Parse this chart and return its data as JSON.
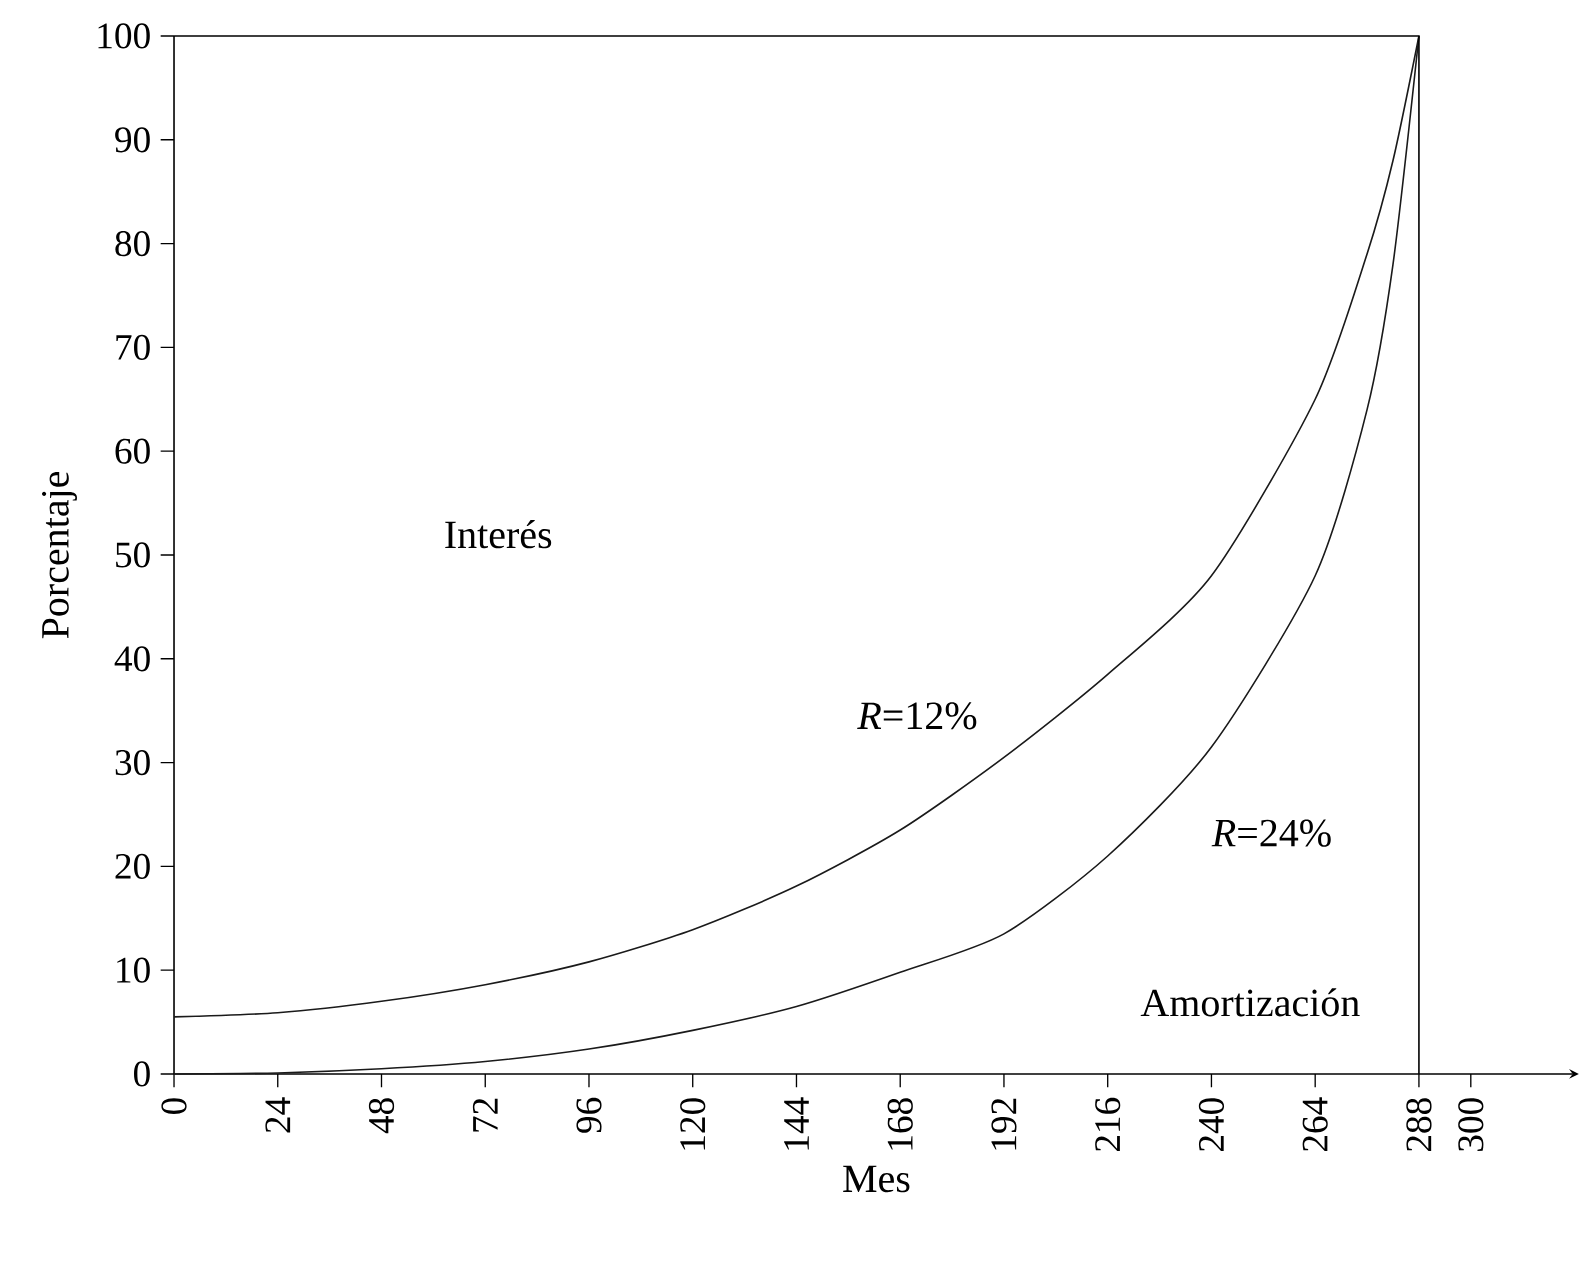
{
  "chart_data": {
    "type": "line",
    "xlabel": "Mes",
    "ylabel": "Porcentaje",
    "series": [
      {
        "color": "#1a1a1a",
        "x": [
          0,
          24,
          48,
          72,
          96,
          120,
          144,
          168,
          192,
          216,
          240,
          264,
          276,
          282,
          288
        ],
        "values": [
          5.5,
          5.9,
          7.0,
          8.6,
          10.8,
          13.9,
          18.1,
          23.5,
          30.5,
          38.5,
          48,
          65,
          79,
          88,
          100
        ]
      },
      {
        "color": "#1a1a1a",
        "x": [
          0,
          24,
          48,
          72,
          96,
          120,
          144,
          168,
          192,
          216,
          240,
          264,
          276,
          282,
          288
        ],
        "values": [
          0,
          0.1,
          0.5,
          1.2,
          2.4,
          4.2,
          6.5,
          9.8,
          13.5,
          21,
          31.5,
          48,
          64,
          78,
          100
        ]
      }
    ],
    "annotations": [
      "Interés",
      "*R*=12%",
      "*R*=24%",
      "Amortización"
    ],
    "xlim": [
      0,
      325
    ],
    "ylim": [
      0,
      100
    ],
    "xticks": [
      0,
      24,
      48,
      72,
      96,
      120,
      144,
      168,
      192,
      216,
      240,
      264,
      288,
      300
    ],
    "yticks": [
      0,
      10,
      20,
      30,
      40,
      50,
      60,
      70,
      80,
      90,
      100
    ],
    "ref_lines": [
      {
        "axis": "x",
        "value": 288
      }
    ],
    "marker": "none",
    "line_style": "solid"
  }
}
